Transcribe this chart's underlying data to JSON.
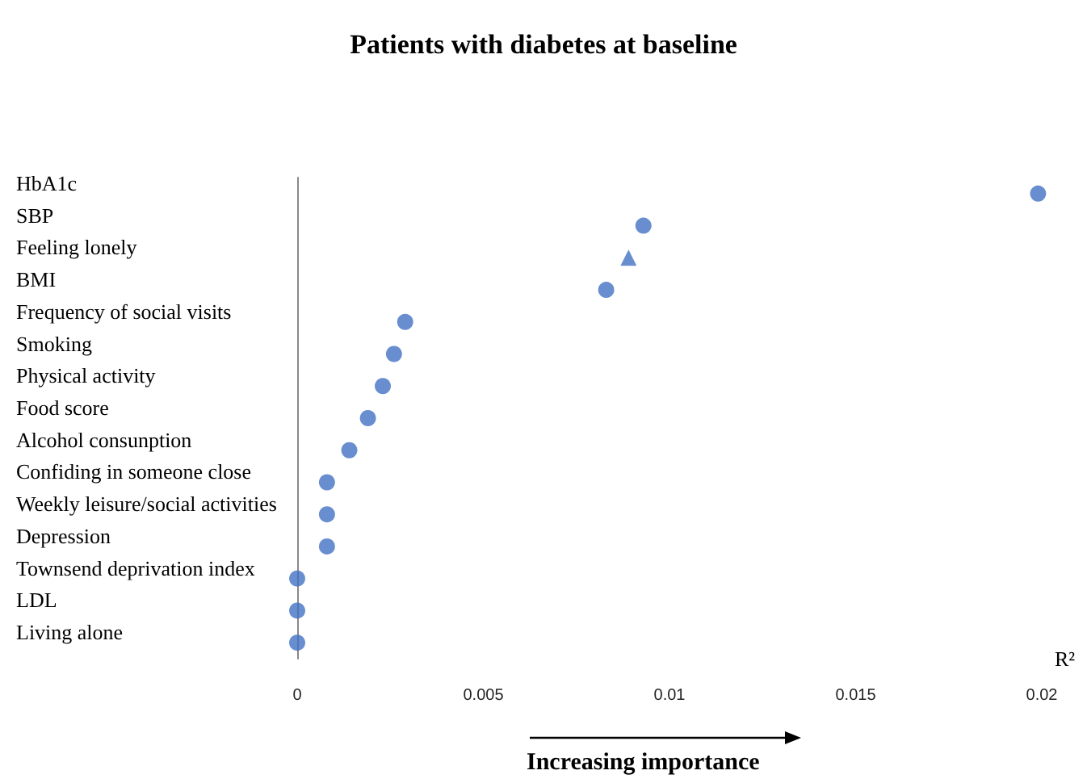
{
  "chart_data": {
    "type": "scatter",
    "orientation": "horizontal",
    "title": "Patients with diabetes at baseline",
    "xlabel": "R²",
    "categories": [
      "HbA1c",
      "SBP",
      "Feeling lonely",
      "BMI",
      "Frequency of social visits",
      "Smoking",
      "Physical activity",
      "Food score",
      "Alcohol consunption",
      "Confiding in someone close",
      "Weekly leisure/social activities",
      "Depression",
      "Townsend deprivation index",
      "LDL",
      "Living alone"
    ],
    "series": [
      {
        "color": "#4472c4",
        "marker": "circle",
        "values": [
          0.0199,
          0.0093,
          null,
          0.0083,
          0.0029,
          0.0026,
          0.0023,
          0.0019,
          0.0014,
          0.0008,
          0.0008,
          0.0008,
          0,
          0,
          0
        ]
      },
      {
        "color": "#4472c4",
        "marker": "triangle",
        "values": [
          null,
          null,
          0.0089,
          null,
          null,
          null,
          null,
          null,
          null,
          null,
          null,
          null,
          null,
          null,
          null
        ]
      }
    ],
    "xlim": [
      0,
      0.02
    ],
    "xticks": [
      0,
      0.005,
      0.01,
      0.015,
      0.02
    ],
    "grid": false,
    "annotations": [
      "Increasing importance"
    ]
  }
}
